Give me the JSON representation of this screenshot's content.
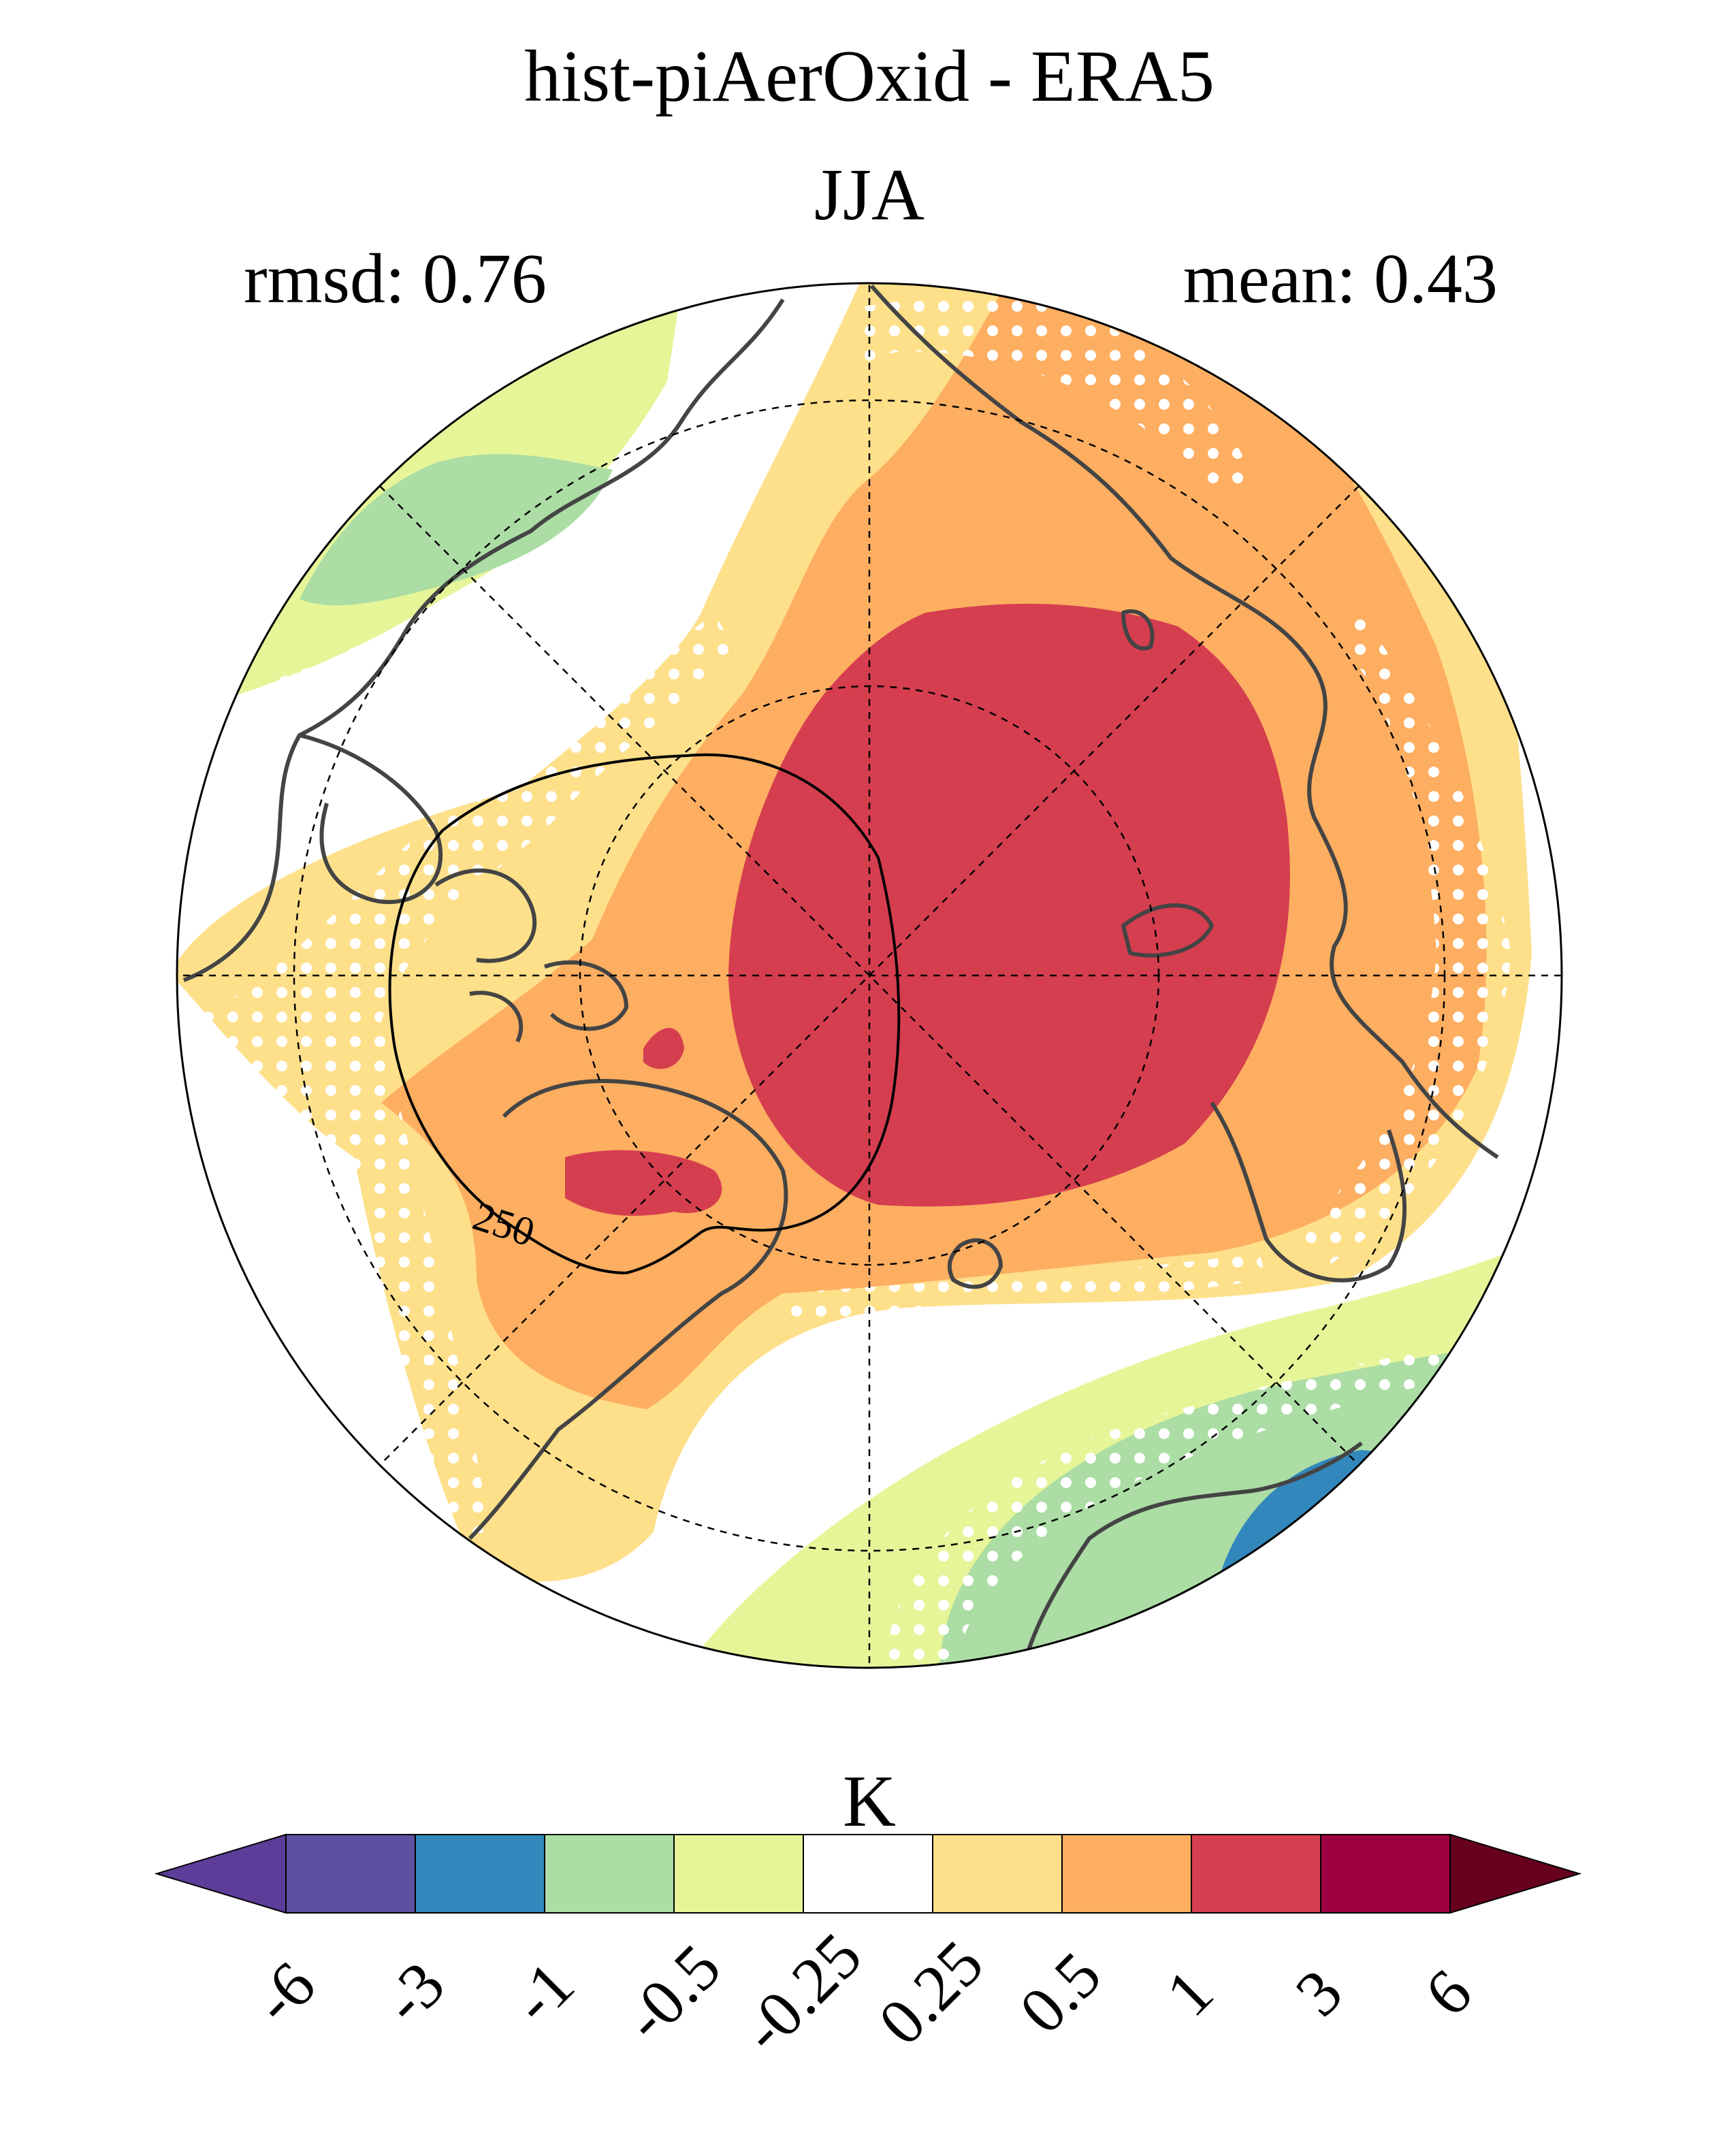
{
  "title": "hist-piAerOxid - ERA5",
  "subtitle": "JJA",
  "stats": {
    "left": "rmsd: 0.76",
    "right": "mean: 0.43"
  },
  "contour_label": "250",
  "colorbar": {
    "unit_label": "K",
    "tick_labels": [
      "-6",
      "-3",
      "-1",
      "-0.5",
      "-0.25",
      "0.25",
      "0.5",
      "1",
      "3",
      "6"
    ],
    "colors": [
      "#5e3c99",
      "#5e4fa2",
      "#3288bd",
      "#abdda4",
      "#e6f598",
      "#ffffff",
      "#fee08b",
      "#fdae61",
      "#d53e4f",
      "#9e0142",
      "#67001f"
    ]
  },
  "map_colors": {
    "coast": "#444444",
    "stipple": "#ffffff"
  }
}
